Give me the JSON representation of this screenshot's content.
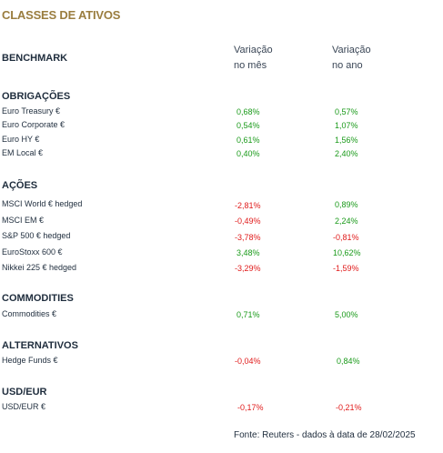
{
  "title": "CLASSES DE ATIVOS",
  "header": {
    "benchmark": "BENCHMARK",
    "col_month_line1": "Variação",
    "col_month_line2": "no mês",
    "col_year_line1": "Variação",
    "col_year_line2": "no ano"
  },
  "sections": {
    "obrigacoes": {
      "title": "OBRIGAÇÕES",
      "rows": [
        {
          "label": "Euro Treasury €",
          "month": "0,68%",
          "year": "0,57%"
        },
        {
          "label": "Euro Corporate €",
          "month": "0,54%",
          "year": "1,07%"
        },
        {
          "label": "Euro HY €",
          "month": "0,61%",
          "year": "1,56%"
        },
        {
          "label": "EM Local €",
          "month": "0,40%",
          "year": "2,40%"
        }
      ]
    },
    "acoes": {
      "title": "AÇÕES",
      "rows": [
        {
          "label": "MSCI World € hedged",
          "month": "-2,81%",
          "year": "0,89%"
        },
        {
          "label": "MSCI EM €",
          "month": "-0,49%",
          "year": "2,24%"
        },
        {
          "label": "S&P 500 € hedged",
          "month": "-3,78%",
          "year": "-0,81%"
        },
        {
          "label": "EuroStoxx 600 €",
          "month": "3,48%",
          "year": "10,62%"
        },
        {
          "label": "Nikkei 225 € hedged",
          "month": "-3,29%",
          "year": "-1,59%"
        }
      ]
    },
    "commodities": {
      "title": "COMMODITIES",
      "rows": [
        {
          "label": "Commodities €",
          "month": "0,71%",
          "year": "5,00%"
        }
      ]
    },
    "alternativos": {
      "title": "ALTERNATIVOS",
      "rows": [
        {
          "label": "Hedge Funds €",
          "month": "-0,04%",
          "year": "0,84%"
        }
      ]
    },
    "usdeur": {
      "title": "USD/EUR",
      "rows": [
        {
          "label": "USD/EUR €",
          "month": "-0,17%",
          "year": "-0,21%"
        }
      ]
    }
  },
  "colors": {
    "title": "#9a7d3f",
    "positive": "#1a9a1a",
    "negative": "#e01b1b",
    "text": "#1f2d3d"
  },
  "source": "Fonte: Reuters - dados à data de 28/02/2025"
}
